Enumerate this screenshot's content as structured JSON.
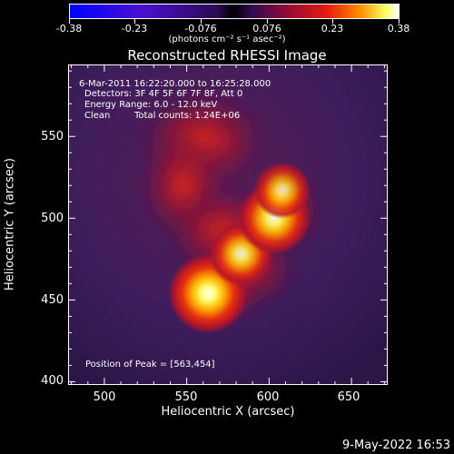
{
  "colorbar": {
    "ticks": [
      "-0.38",
      "-0.23",
      "-0.076",
      "0.076",
      "0.23",
      "0.38"
    ],
    "units_label": "(photons cm⁻² s⁻¹ asec⁻²)"
  },
  "chart_data": {
    "type": "heatmap",
    "title": "Reconstructed RHESSI Image",
    "xlabel": "Heliocentric X (arcsec)",
    "ylabel": "Heliocentric Y (arcsec)",
    "xlim": [
      478,
      672
    ],
    "ylim": [
      398,
      594
    ],
    "xticks": [
      500,
      550,
      600,
      650
    ],
    "yticks": [
      400,
      450,
      500,
      550
    ],
    "colorbar_range": [
      -0.38,
      0.38
    ],
    "peak": {
      "x": 563,
      "y": 454
    },
    "sources": [
      {
        "x": 563,
        "y": 454,
        "intensity": 0.38
      },
      {
        "x": 583,
        "y": 478,
        "intensity": 0.27
      },
      {
        "x": 603,
        "y": 500,
        "intensity": 0.33
      },
      {
        "x": 608,
        "y": 517,
        "intensity": 0.22
      }
    ]
  },
  "annotations": {
    "time_range": "6-Mar-2011 16:22:20.000 to 16:25:28.000",
    "detectors": "Detectors: 3F 4F 5F 6F 7F 8F, Att 0",
    "energy": "Energy Range: 6.0 - 12.0 keV",
    "method": "Clean",
    "total_counts": "Total counts: 1.24E+06",
    "peak_label": "Position of Peak = [563,454]"
  },
  "footer": {
    "date": "9-May-2022 16:53"
  }
}
